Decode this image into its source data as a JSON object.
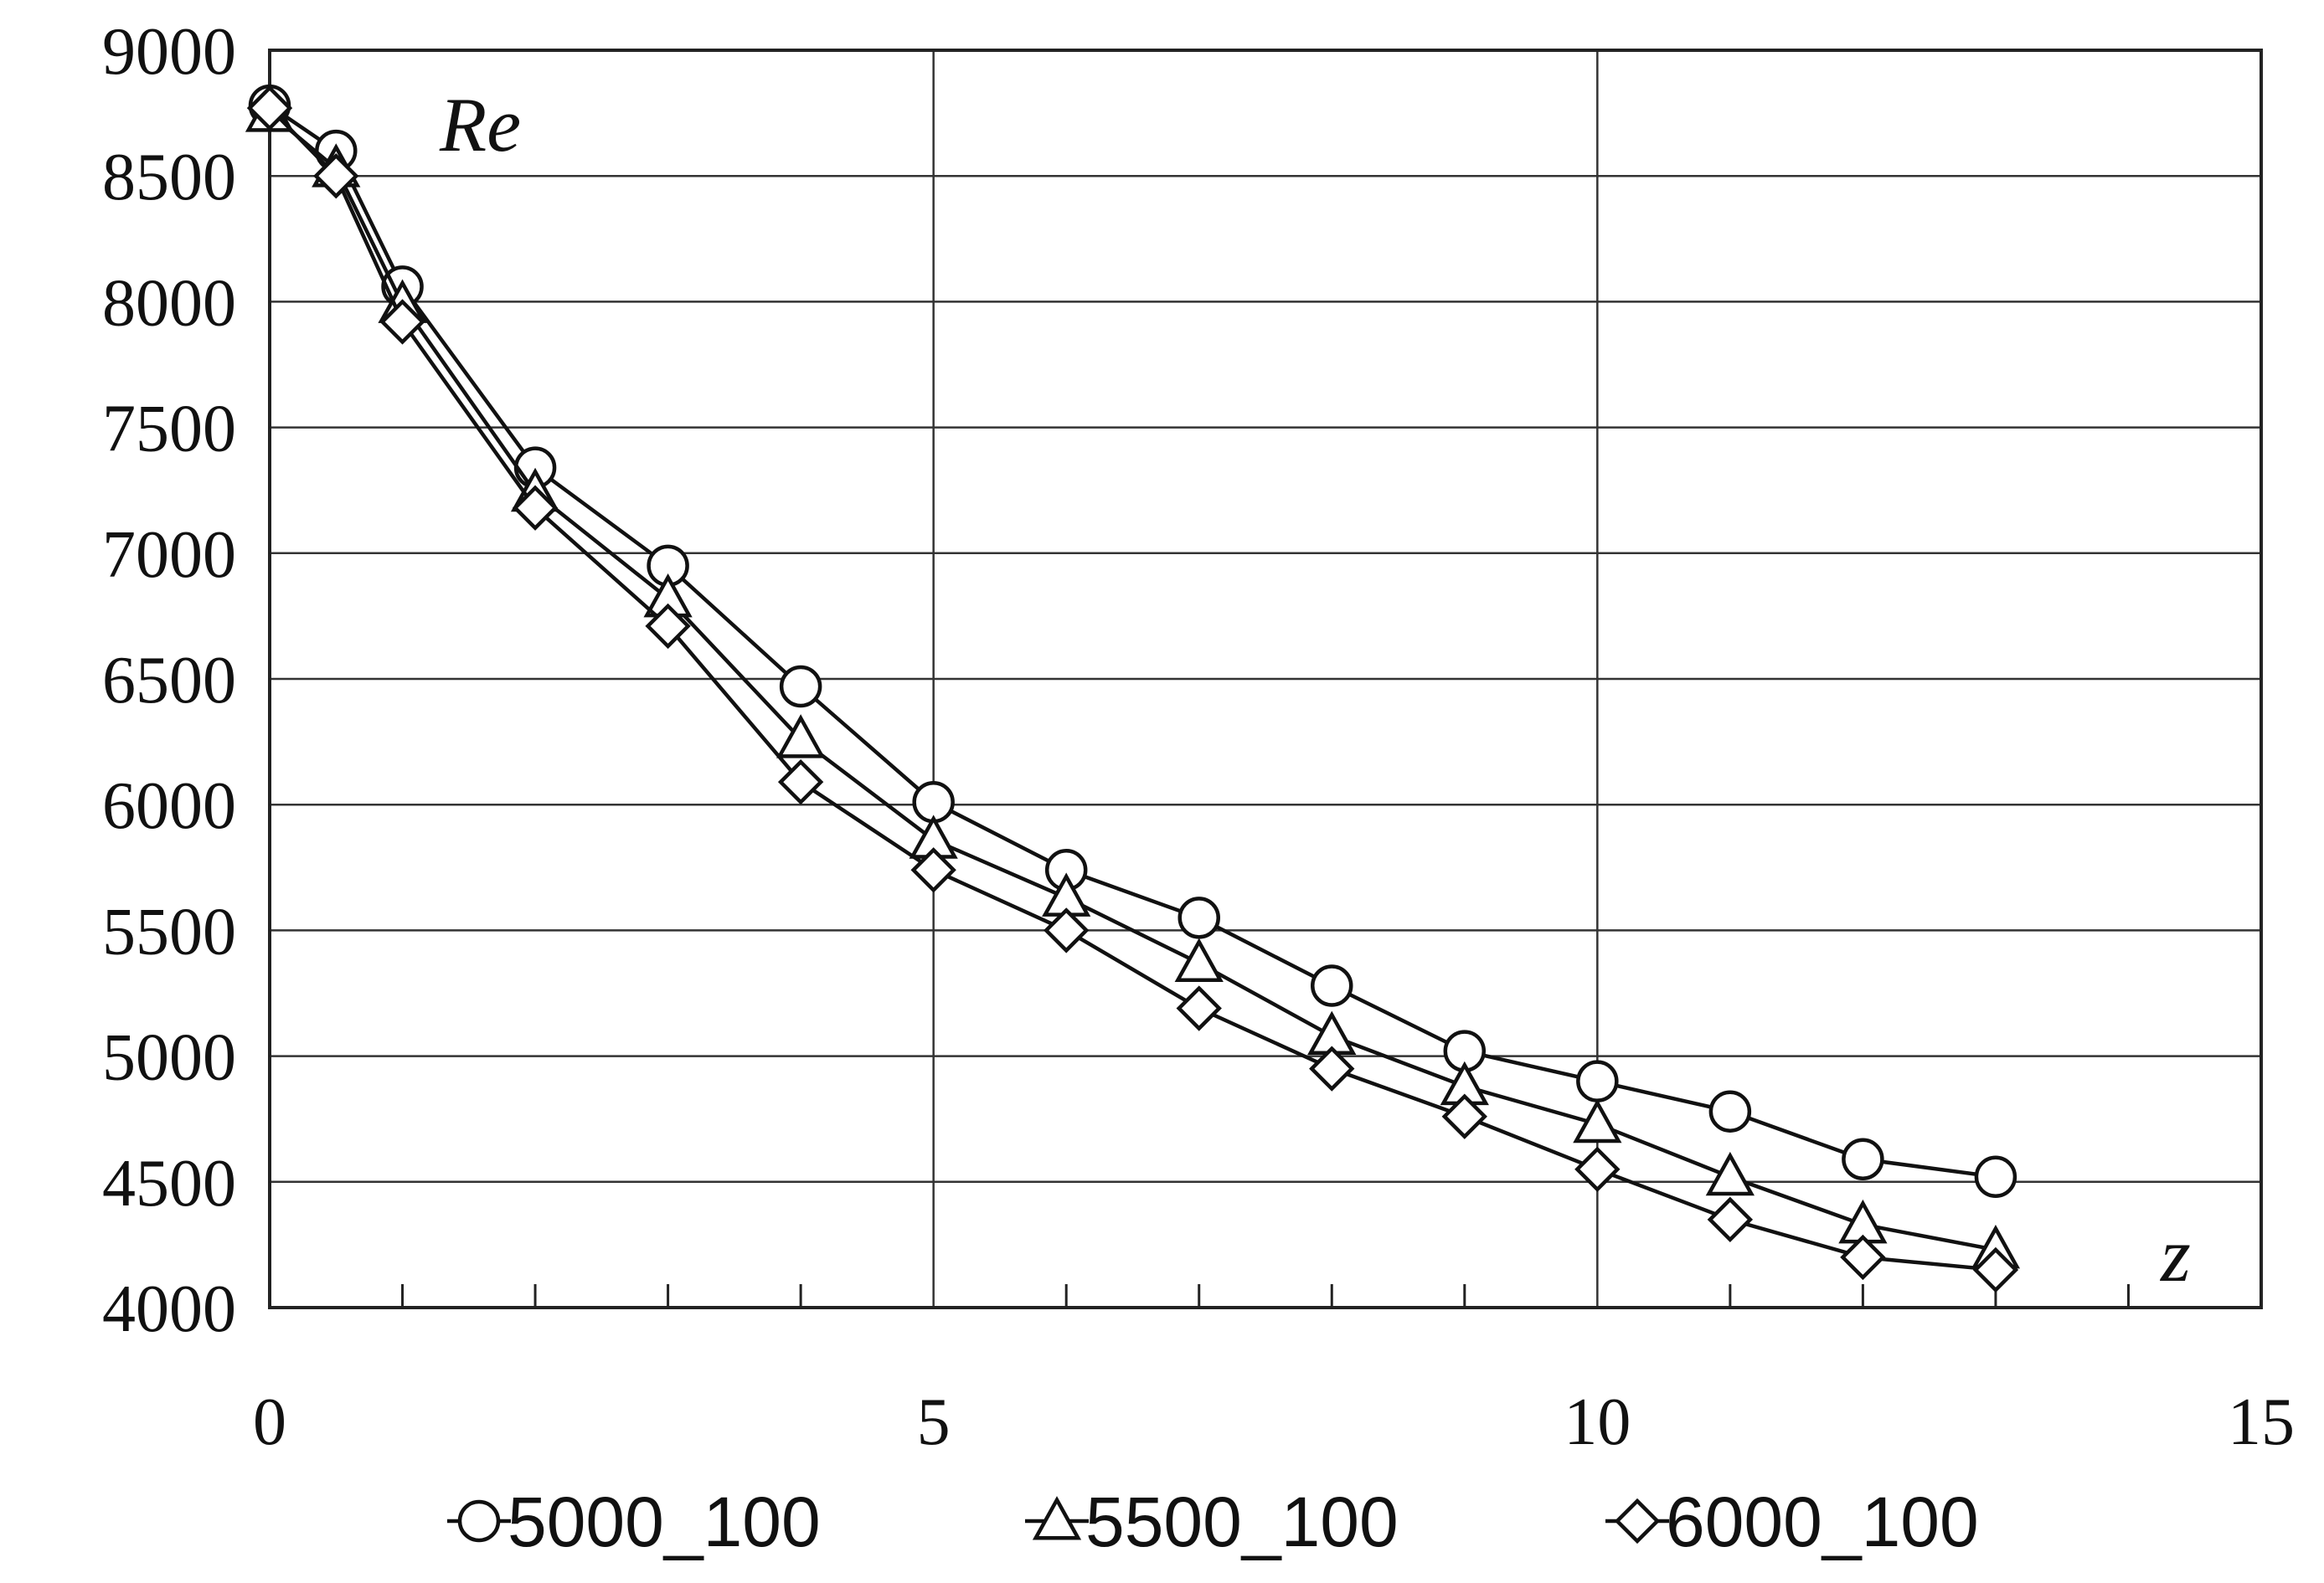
{
  "chart_data": {
    "type": "line",
    "title": "",
    "xlabel": "z",
    "ylabel": "Re",
    "xlim": [
      0,
      15
    ],
    "ylim": [
      4000,
      9000
    ],
    "xticks": [
      0,
      5,
      10,
      15
    ],
    "yticks": [
      4000,
      4500,
      5000,
      5500,
      6000,
      6500,
      7000,
      7500,
      8000,
      8500,
      9000
    ],
    "minor_xticks": [
      1,
      2,
      3,
      4,
      6,
      7,
      8,
      9,
      11,
      12,
      13,
      14
    ],
    "grid": true,
    "legend_position": "bottom",
    "x": [
      0,
      0.5,
      1,
      2,
      3,
      4,
      5,
      6,
      7,
      8,
      9,
      10,
      11,
      12,
      13
    ],
    "series": [
      {
        "name": "5000_100",
        "marker": "circle",
        "values": [
          8780,
          8600,
          8060,
          7340,
          6950,
          6470,
          6010,
          5740,
          5550,
          5280,
          5020,
          4900,
          4780,
          4590,
          4520
        ]
      },
      {
        "name": "5500_100",
        "marker": "triangle",
        "values": [
          8750,
          8530,
          7990,
          7240,
          6820,
          6260,
          5860,
          5630,
          5370,
          5080,
          4880,
          4730,
          4520,
          4330,
          4230
        ]
      },
      {
        "name": "6000_100",
        "marker": "diamond",
        "values": [
          8770,
          8500,
          7920,
          7180,
          6710,
          6090,
          5740,
          5500,
          5190,
          4950,
          4760,
          4550,
          4350,
          4200,
          4150
        ]
      }
    ]
  }
}
